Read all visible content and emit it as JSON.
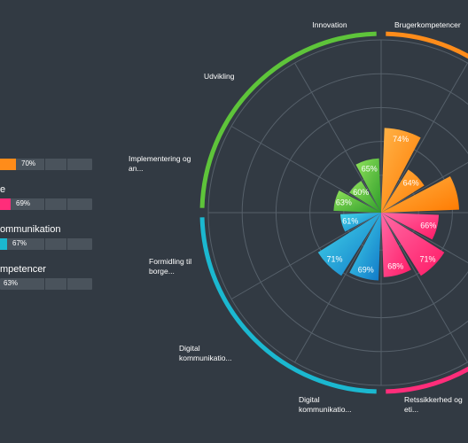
{
  "chart_data": {
    "type": "radial-bar",
    "groups": [
      {
        "name": "Brugerkompetencer",
        "color": "#ff8c1a",
        "summary": "70%"
      },
      {
        "name": "Retssikkerhed og etik",
        "color": "#ff2d7a",
        "summary": "69%"
      },
      {
        "name": "Digital kommunikation",
        "color": "#1bb8d0",
        "summary": "67%"
      },
      {
        "name": "Innovationskompetencer",
        "color": "#5ec43a",
        "summary": "63%"
      }
    ],
    "legend": [
      {
        "label": "",
        "value": "70%",
        "color": "#ff8c1a",
        "fraction": 0.7
      },
      {
        "label": "e",
        "value": "69%",
        "color": "#ff2d7a",
        "fraction": 0.69
      },
      {
        "label": "ommunikation",
        "value": "67%",
        "color": "#1bb8d0",
        "fraction": 0.67
      },
      {
        "label": "mpetencer",
        "value": "63%",
        "color": "#5ec43a",
        "fraction": 0.63
      }
    ],
    "categories": [
      "Innovation",
      "Brugerkompetencer",
      "Retssikkerhed og eti...",
      "Digital kommunikatio...",
      "Digital kommunikatio...",
      "Formidling til borge...",
      "Implementering og an...",
      "Udvikling"
    ],
    "values": [
      {
        "value": 74,
        "label": "74%",
        "group": 0
      },
      {
        "value": 64,
        "label": "64%",
        "group": 0
      },
      {
        "value": 72,
        "label": "",
        "group": 0
      },
      {
        "value": 66,
        "label": "66%",
        "group": 1
      },
      {
        "value": 71,
        "label": "71%",
        "group": 1
      },
      {
        "value": 68,
        "label": "68%",
        "group": 1
      },
      {
        "value": 69,
        "label": "69%",
        "group": 2
      },
      {
        "value": 71,
        "label": "71%",
        "group": 2
      },
      {
        "value": 61,
        "label": "61%",
        "group": 2
      },
      {
        "value": 63,
        "label": "63%",
        "group": 3
      },
      {
        "value": 60,
        "label": "60%",
        "group": 3
      },
      {
        "value": 65,
        "label": "65%",
        "group": 3
      }
    ],
    "rlim": [
      50,
      100
    ],
    "grid": true
  }
}
